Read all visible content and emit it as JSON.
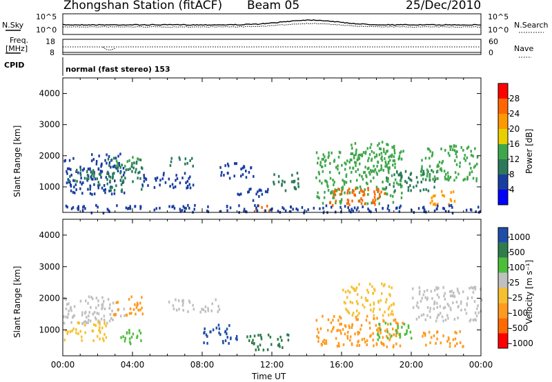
{
  "header": {
    "station": "Zhongshan Station (fitACF)",
    "beam": "Beam 05",
    "date": "25/Dec/2010"
  },
  "noise_panel": {
    "left_label": "N.Sky",
    "left_ticks": [
      "10^5",
      "10^0"
    ],
    "right_label": "N.Search",
    "right_ticks": [
      "10^5",
      "10^0"
    ]
  },
  "freq_panel": {
    "left_label_1": "Freq.",
    "left_label_2": "[MHz]",
    "left_ticks": [
      "18",
      "8"
    ],
    "right_label": "Nave",
    "right_ticks": [
      "60",
      "0"
    ]
  },
  "cpid": {
    "label": "CPID",
    "text": "normal (fast stereo) 153"
  },
  "colors": {
    "power_scale": [
      "#0000ff",
      "#1a3ea0",
      "#2a7a5a",
      "#3fa74b",
      "#e8d000",
      "#ff9900",
      "#ff6600",
      "#ff0000"
    ],
    "velocity_scale": [
      "#ff0000",
      "#ff6a00",
      "#ff9a1f",
      "#f5c030",
      "#c0c0c0",
      "#4cbf3a",
      "#2e7d4a",
      "#1f4ea8"
    ],
    "background": "#ffffff"
  },
  "chart_data": [
    {
      "type": "heatmap",
      "title": "",
      "xlabel": "Time UT",
      "ylabel": "Slant Range [km]",
      "x_ticks": [
        "00:00",
        "04:00",
        "08:00",
        "12:00",
        "16:00",
        "20:00",
        "00:00"
      ],
      "y_ticks": [
        "1000",
        "2000",
        "3000",
        "4000"
      ],
      "xlim_hours": [
        0,
        24
      ],
      "ylim": [
        180,
        4500
      ],
      "colorbar_label": "Power [dB]",
      "colorbar_ticks": [
        "4",
        "8",
        "12",
        "16",
        "20",
        "24",
        "28"
      ],
      "colorbar_range": [
        0,
        32
      ],
      "regions": [
        {
          "t0": 0.0,
          "t1": 3.5,
          "r0": 800,
          "r1": 2100,
          "v": 7
        },
        {
          "t0": 0.3,
          "t1": 2.2,
          "r0": 1100,
          "r1": 1600,
          "v": 11
        },
        {
          "t0": 2.5,
          "t1": 4.6,
          "r0": 900,
          "r1": 2000,
          "v": 9
        },
        {
          "t0": 3.0,
          "t1": 4.4,
          "r0": 1700,
          "r1": 2000,
          "v": 15
        },
        {
          "t0": 4.5,
          "t1": 7.5,
          "r0": 1000,
          "r1": 1500,
          "v": 6
        },
        {
          "t0": 6.0,
          "t1": 7.5,
          "r0": 1700,
          "r1": 2000,
          "v": 8
        },
        {
          "t0": 9.0,
          "t1": 11.0,
          "r0": 1300,
          "r1": 1800,
          "v": 7
        },
        {
          "t0": 10.0,
          "t1": 11.8,
          "r0": 600,
          "r1": 1000,
          "v": 6
        },
        {
          "t0": 11.0,
          "t1": 12.2,
          "r0": 250,
          "r1": 500,
          "v": 25
        },
        {
          "t0": 12.0,
          "t1": 13.5,
          "r0": 900,
          "r1": 1500,
          "v": 9
        },
        {
          "t0": 14.5,
          "t1": 19.5,
          "r0": 500,
          "r1": 2200,
          "v": 14
        },
        {
          "t0": 15.0,
          "t1": 18.5,
          "r0": 400,
          "r1": 1000,
          "v": 27
        },
        {
          "t0": 16.5,
          "t1": 19.0,
          "r0": 1500,
          "r1": 2500,
          "v": 12
        },
        {
          "t0": 18.5,
          "t1": 21.5,
          "r0": 900,
          "r1": 1600,
          "v": 10
        },
        {
          "t0": 20.5,
          "t1": 23.8,
          "r0": 1200,
          "r1": 2400,
          "v": 13
        },
        {
          "t0": 21.0,
          "t1": 22.5,
          "r0": 400,
          "r1": 900,
          "v": 22
        },
        {
          "t0": 0.0,
          "t1": 24.0,
          "r0": 200,
          "r1": 450,
          "v": 5
        }
      ]
    },
    {
      "type": "heatmap",
      "title": "",
      "xlabel": "Time UT",
      "ylabel": "Slant Range [km]",
      "x_ticks": [
        "00:00",
        "04:00",
        "08:00",
        "12:00",
        "16:00",
        "20:00",
        "00:00"
      ],
      "y_ticks": [
        "1000",
        "2000",
        "3000",
        "4000"
      ],
      "xlim_hours": [
        0,
        24
      ],
      "ylim": [
        180,
        4500
      ],
      "colorbar_label": "Velocity [m s⁻¹]",
      "colorbar_ticks": [
        "1000",
        "500",
        "100",
        "25",
        "-25",
        "-100",
        "-500",
        "-1000"
      ],
      "regions": [
        {
          "t0": 0.0,
          "t1": 3.5,
          "r0": 1200,
          "r1": 2100,
          "v": "-25..25"
        },
        {
          "t0": 0.0,
          "t1": 2.5,
          "r0": 700,
          "r1": 1300,
          "v": "-100"
        },
        {
          "t0": 2.8,
          "t1": 4.6,
          "r0": 1500,
          "r1": 2100,
          "v": "-500"
        },
        {
          "t0": 3.0,
          "t1": 4.5,
          "r0": 600,
          "r1": 1100,
          "v": "100"
        },
        {
          "t0": 6.0,
          "t1": 9.0,
          "r0": 1600,
          "r1": 2000,
          "v": "-25..25"
        },
        {
          "t0": 8.0,
          "t1": 10.0,
          "r0": 600,
          "r1": 1200,
          "v": "1000"
        },
        {
          "t0": 10.5,
          "t1": 13.0,
          "r0": 400,
          "r1": 900,
          "v": "500"
        },
        {
          "t0": 14.5,
          "t1": 19.5,
          "r0": 500,
          "r1": 1500,
          "v": "-500"
        },
        {
          "t0": 16.0,
          "t1": 19.0,
          "r0": 1500,
          "r1": 2500,
          "v": "-100"
        },
        {
          "t0": 18.0,
          "t1": 20.0,
          "r0": 700,
          "r1": 1300,
          "v": "100"
        },
        {
          "t0": 20.0,
          "t1": 24.0,
          "r0": 1300,
          "r1": 2400,
          "v": "-25..25"
        },
        {
          "t0": 20.5,
          "t1": 23.0,
          "r0": 500,
          "r1": 1000,
          "v": "-500"
        }
      ]
    }
  ]
}
